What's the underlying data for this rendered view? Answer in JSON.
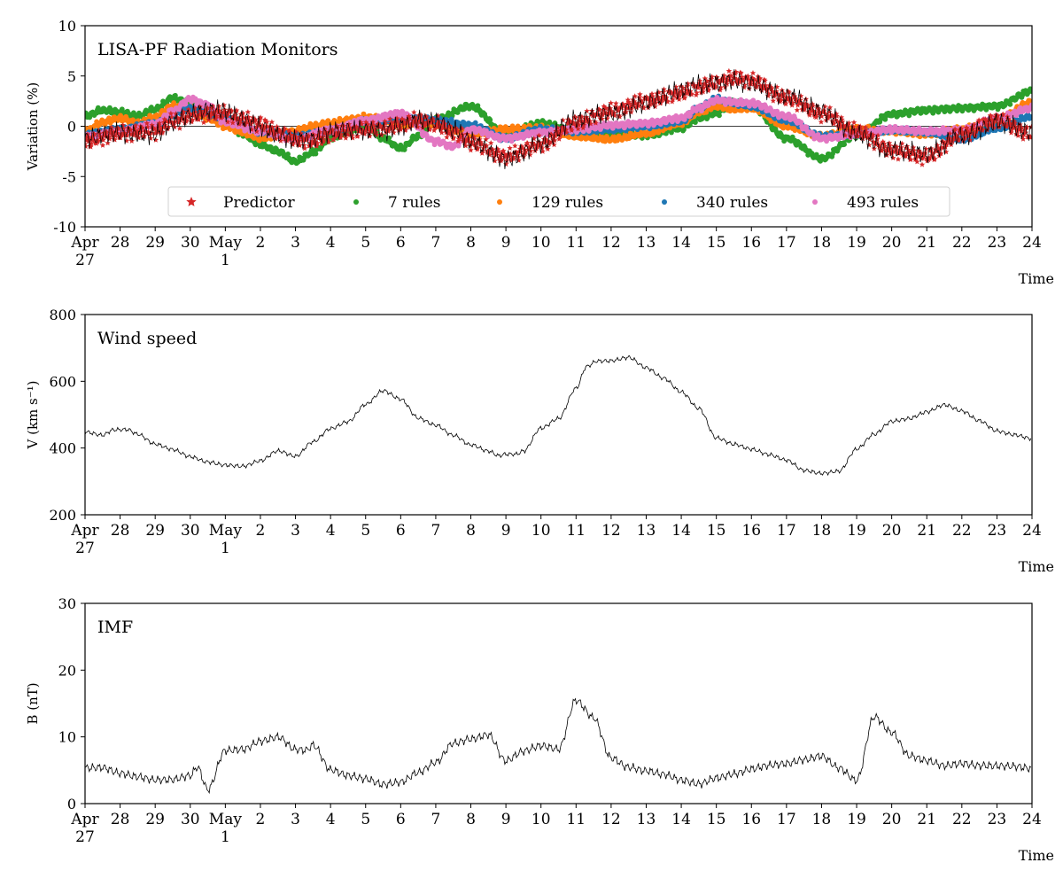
{
  "figure": {
    "colors": {
      "predictor": "#d62728",
      "rules7": "#2ca02c",
      "rules129": "#ff7f0e",
      "rules340": "#1f77b4",
      "rules493": "#e377c2",
      "line": "#000000"
    }
  },
  "chart_data": [
    {
      "type": "scatter",
      "title": "LISA-PF Radiation Monitors",
      "ylabel": "Variation (%)",
      "xlabel": "Time",
      "ylim": [
        -10,
        10
      ],
      "yticks": [
        -10,
        -5,
        0,
        5,
        10
      ],
      "xlim": [
        "Apr 27",
        "May 24"
      ],
      "xtick_labels": [
        "Apr\n27",
        "28",
        "29",
        "30",
        "May\n1",
        "2",
        "3",
        "4",
        "5",
        "6",
        "7",
        "8",
        "9",
        "10",
        "11",
        "12",
        "13",
        "14",
        "15",
        "16",
        "17",
        "18",
        "19",
        "20",
        "21",
        "22",
        "23",
        "24"
      ],
      "legend_position": "lower center",
      "legend_columns": 5,
      "zero_line": true,
      "observed_line": {
        "name": "",
        "color": "#000000",
        "x": [
          0,
          1,
          2,
          2.5,
          3,
          3.5,
          4,
          4.5,
          5,
          5.5,
          6,
          6.5,
          7,
          7.5,
          8,
          8.5,
          9,
          9.5,
          10,
          10.5,
          11,
          12,
          13,
          14,
          15,
          16,
          17,
          17.5,
          18,
          18.5,
          19,
          20,
          21,
          22,
          23,
          24,
          25,
          26,
          27
        ],
        "y": [
          -1.5,
          -0.7,
          -0.5,
          0.5,
          1.0,
          1.3,
          1.3,
          0.7,
          0.2,
          -0.6,
          -1.3,
          -1.5,
          -0.8,
          -0.5,
          -0.3,
          -0.2,
          0.2,
          0.6,
          0.2,
          -0.6,
          -1.6,
          -3.0,
          -1.8,
          0.4,
          1.5,
          2.5,
          3.3,
          3.9,
          4.3,
          4.8,
          4.5,
          2.8,
          1.3,
          -0.5,
          -2.4,
          -3.0,
          -0.8,
          0.6,
          -0.8
        ]
      },
      "series": [
        {
          "name": "Predictor",
          "marker": "star",
          "color": "#d62728",
          "x": [
            0,
            1,
            2,
            2.5,
            3,
            3.5,
            4,
            4.5,
            5,
            5.5,
            6,
            6.5,
            7,
            7.5,
            8,
            8.5,
            9,
            9.5,
            10,
            10.5,
            11,
            12,
            13,
            14,
            15,
            16,
            17,
            17.5,
            18,
            18.5,
            19,
            20,
            21,
            22,
            23,
            24,
            25,
            26,
            27
          ],
          "y": [
            -1.5,
            -0.7,
            -0.5,
            0.5,
            1.0,
            1.3,
            1.3,
            0.7,
            0.2,
            -0.6,
            -1.3,
            -1.5,
            -0.8,
            -0.5,
            -0.3,
            -0.2,
            0.2,
            0.6,
            0.2,
            -0.6,
            -1.6,
            -3.0,
            -1.8,
            0.4,
            1.5,
            2.5,
            3.3,
            3.9,
            4.3,
            4.8,
            4.5,
            2.8,
            1.3,
            -0.5,
            -2.4,
            -3.0,
            -0.8,
            0.6,
            -0.8
          ]
        },
        {
          "name": "7 rules",
          "marker": "circle",
          "color": "#2ca02c",
          "x": [
            0,
            0.5,
            1,
            1.5,
            2,
            2.5,
            3,
            3.5,
            4,
            4.5,
            5,
            5.5,
            6,
            6.5,
            7,
            7.5,
            8,
            8.5,
            9,
            9.5,
            10,
            11,
            12,
            13,
            14,
            15,
            16,
            17,
            17.5,
            18,
            18.5,
            19,
            20,
            21,
            22,
            23,
            24,
            25,
            26,
            27
          ],
          "y": [
            1.0,
            1.6,
            1.4,
            1.0,
            1.7,
            2.8,
            2.3,
            1.4,
            0.5,
            -0.8,
            -1.8,
            -2.5,
            -3.5,
            -2.6,
            -1.2,
            -0.6,
            0.2,
            -1.2,
            -2.2,
            -1.0,
            0.7,
            2.0,
            -0.8,
            0.3,
            -0.5,
            -0.8,
            -0.9,
            -0.2,
            0.8,
            1.3,
            2.4,
            2.0,
            -1.2,
            -3.2,
            -0.9,
            1.2,
            1.6,
            1.8,
            2.0,
            3.5
          ]
        },
        {
          "name": "129 rules",
          "marker": "circle",
          "color": "#ff7f0e",
          "x": [
            0,
            0.5,
            1,
            1.5,
            2,
            2.5,
            3,
            3.5,
            4,
            4.5,
            5,
            5.5,
            6,
            6.5,
            7,
            7.5,
            8,
            8.5,
            9,
            9.5,
            10,
            11,
            12,
            13,
            14,
            15,
            16,
            17,
            17.5,
            18,
            18.5,
            19,
            20,
            21,
            22,
            23,
            24,
            25,
            26,
            27
          ],
          "y": [
            -0.5,
            0.4,
            0.8,
            0.3,
            0.9,
            2.0,
            1.8,
            0.8,
            0.0,
            -0.6,
            -1.2,
            -0.9,
            -0.5,
            0.0,
            0.3,
            0.6,
            0.9,
            0.7,
            0.1,
            0.4,
            0.2,
            -0.8,
            -0.3,
            -0.2,
            -1.0,
            -1.3,
            -0.7,
            0.3,
            1.4,
            2.0,
            1.7,
            1.8,
            0.0,
            -1.0,
            -0.3,
            -0.5,
            -0.8,
            -0.3,
            0.6,
            2.4
          ]
        },
        {
          "name": "340 rules",
          "marker": "circle",
          "color": "#1f77b4",
          "x": [
            0,
            1,
            2,
            3,
            4,
            5,
            6,
            7,
            8,
            9,
            10,
            11,
            12,
            13,
            14,
            15,
            16,
            17,
            17.5,
            18,
            18.5,
            19,
            20,
            21,
            22,
            23,
            24,
            25,
            26,
            27
          ],
          "y": [
            -0.8,
            -0.3,
            0.3,
            1.8,
            0.8,
            -0.5,
            -1.0,
            -0.5,
            0.5,
            0.8,
            0.6,
            0.1,
            -1.2,
            -0.3,
            -0.5,
            -0.3,
            0.0,
            0.5,
            1.8,
            2.7,
            2.3,
            2.0,
            0.6,
            -1.0,
            -0.8,
            -0.4,
            -0.6,
            -1.3,
            -0.2,
            1.0
          ]
        },
        {
          "name": "493 rules",
          "marker": "circle",
          "color": "#e377c2",
          "x": [
            0,
            1,
            2,
            2.5,
            3,
            3.5,
            4,
            5,
            6,
            7,
            8,
            9,
            10,
            10.5,
            11,
            12,
            13,
            14,
            15,
            16,
            17,
            17.5,
            18,
            18.5,
            19,
            20,
            21,
            22,
            23,
            24,
            25,
            26,
            27
          ],
          "y": [
            -1.0,
            -0.5,
            0.2,
            1.5,
            2.7,
            2.1,
            0.4,
            -0.5,
            -1.3,
            -0.3,
            0.6,
            1.3,
            -1.5,
            -2.0,
            -0.3,
            -1.2,
            -0.6,
            -0.3,
            0.1,
            0.3,
            0.8,
            1.8,
            2.6,
            2.4,
            2.3,
            1.0,
            -1.2,
            -0.8,
            -0.3,
            -0.5,
            -0.4,
            0.8,
            1.8
          ]
        }
      ]
    },
    {
      "type": "line",
      "title": "Wind speed",
      "ylabel": "V (km s⁻¹)",
      "xlabel": "Time",
      "ylim": [
        200,
        800
      ],
      "yticks": [
        200,
        400,
        600,
        800
      ],
      "xlim": [
        "Apr 27",
        "May 24"
      ],
      "xtick_labels": [
        "Apr\n27",
        "28",
        "29",
        "30",
        "May\n1",
        "2",
        "3",
        "4",
        "5",
        "6",
        "7",
        "8",
        "9",
        "10",
        "11",
        "12",
        "13",
        "14",
        "15",
        "16",
        "17",
        "18",
        "19",
        "20",
        "21",
        "22",
        "23",
        "24"
      ],
      "series": [
        {
          "name": "",
          "color": "#000000",
          "x": [
            0,
            0.5,
            0.8,
            1.2,
            1.5,
            2,
            2.5,
            3,
            3.5,
            4,
            4.5,
            5,
            5.5,
            6,
            6.5,
            7,
            7.5,
            8,
            8.5,
            9,
            9.5,
            10,
            10.5,
            11,
            11.5,
            11.8,
            12,
            12.3,
            12.5,
            13,
            13.5,
            14,
            14.3,
            14.6,
            15,
            15.5,
            16,
            16.5,
            17,
            17.5,
            18,
            18.5,
            19,
            19.5,
            20,
            20.5,
            21,
            21.5,
            22,
            22.5,
            23,
            23.5,
            24,
            24.5,
            25,
            25.5,
            26,
            26.5,
            27
          ],
          "y": [
            450,
            440,
            455,
            455,
            440,
            410,
            395,
            375,
            360,
            350,
            345,
            360,
            390,
            375,
            420,
            460,
            480,
            530,
            570,
            545,
            490,
            470,
            440,
            410,
            390,
            375,
            380,
            380,
            390,
            460,
            490,
            580,
            645,
            660,
            660,
            670,
            640,
            610,
            570,
            520,
            430,
            410,
            395,
            380,
            365,
            335,
            325,
            330,
            395,
            440,
            480,
            490,
            510,
            530,
            510,
            480,
            450,
            440,
            430
          ]
        }
      ]
    },
    {
      "type": "line",
      "title": "IMF",
      "ylabel": "B (nT)",
      "xlabel": "Time",
      "ylim": [
        0,
        30
      ],
      "yticks": [
        0,
        10,
        20,
        30
      ],
      "xlim": [
        "Apr 27",
        "May 24"
      ],
      "xtick_labels": [
        "Apr\n27",
        "28",
        "29",
        "30",
        "May\n1",
        "2",
        "3",
        "4",
        "5",
        "6",
        "7",
        "8",
        "9",
        "10",
        "11",
        "12",
        "13",
        "14",
        "15",
        "16",
        "17",
        "18",
        "19",
        "20",
        "21",
        "22",
        "23",
        "24"
      ],
      "series": [
        {
          "name": "",
          "color": "#000000",
          "x": [
            0,
            0.5,
            1,
            1.5,
            2,
            2.5,
            3,
            3.2,
            3.5,
            4,
            4.5,
            5,
            5.5,
            6,
            6.3,
            6.5,
            7,
            7.5,
            8,
            8.5,
            9,
            9.5,
            10,
            10.5,
            11,
            11.5,
            12,
            12.5,
            13,
            13.5,
            14,
            14.5,
            15,
            15.5,
            16,
            16.5,
            17,
            17.5,
            18,
            18.5,
            19,
            19.5,
            20,
            20.5,
            21,
            21.5,
            22,
            22.5,
            23,
            23.5,
            24,
            24.5,
            25,
            25.5,
            26,
            26.5,
            27
          ],
          "y": [
            5.2,
            5.4,
            4.7,
            4.2,
            3.6,
            3.5,
            4.0,
            5.3,
            2.0,
            8.0,
            8.3,
            9.5,
            10.0,
            8.0,
            7.8,
            8.6,
            5.0,
            4.3,
            3.9,
            3.0,
            3.2,
            4.5,
            6.0,
            9.0,
            9.8,
            10.5,
            6.5,
            7.8,
            8.5,
            8.0,
            15.5,
            13.0,
            7.0,
            5.5,
            4.8,
            4.2,
            3.4,
            3.0,
            4.0,
            4.6,
            5.2,
            5.6,
            5.8,
            6.5,
            7.2,
            5.5,
            3.6,
            13.0,
            10.5,
            7.0,
            6.4,
            5.8,
            6.2,
            5.8,
            5.6,
            5.4,
            5.1
          ]
        }
      ]
    }
  ]
}
